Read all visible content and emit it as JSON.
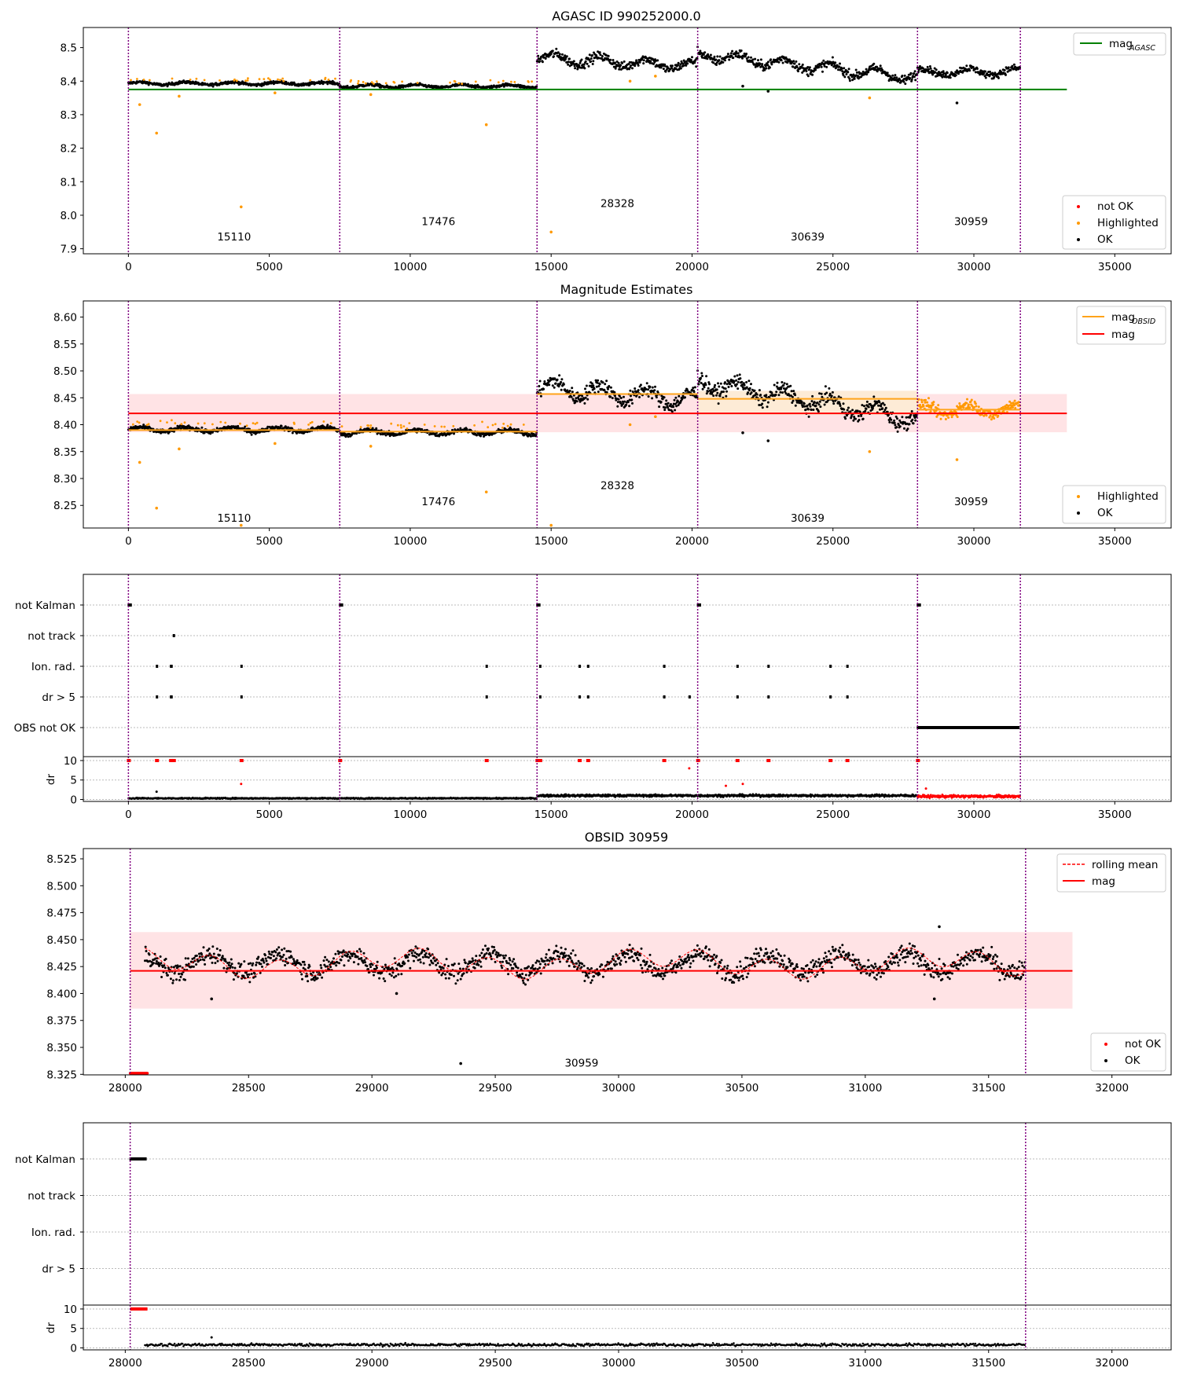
{
  "chart_data": [
    {
      "type": "scatter",
      "title": "AGASC ID 990252000.0",
      "ylim": [
        7.885,
        8.56
      ],
      "xlim": [
        -1600,
        37000
      ],
      "xticks": [
        0,
        5000,
        10000,
        15000,
        20000,
        25000,
        30000,
        35000
      ],
      "yticks": [
        7.9,
        8.0,
        8.1,
        8.2,
        8.3,
        8.4,
        8.5
      ],
      "obsid_boundaries": [
        0,
        7500,
        14500,
        20200,
        28000,
        31650
      ],
      "obsid_labels": [
        {
          "text": "15110",
          "x": 3750,
          "y": 7.925
        },
        {
          "text": "17476",
          "x": 11000,
          "y": 7.97
        },
        {
          "text": "28328",
          "x": 17350,
          "y": 8.025
        },
        {
          "text": "30639",
          "x": 24100,
          "y": 7.925
        },
        {
          "text": "30959",
          "x": 29900,
          "y": 7.97
        }
      ],
      "segments": [
        {
          "x0": 0,
          "x1": 7500,
          "level": 8.393,
          "spread": 0.012,
          "type": "ok"
        },
        {
          "x0": 7500,
          "x1": 14500,
          "level": 8.385,
          "spread": 0.012,
          "type": "ok"
        },
        {
          "x0": 14500,
          "x1": 20200,
          "level_start": 8.47,
          "level_end": 8.445,
          "spread": 0.04,
          "type": "ok"
        },
        {
          "x0": 20200,
          "x1": 28000,
          "level_start": 8.48,
          "level_end": 8.41,
          "spread": 0.04,
          "type": "ok"
        },
        {
          "x0": 28000,
          "x1": 31650,
          "level": 8.428,
          "spread": 0.03,
          "type": "ok"
        }
      ],
      "highlighted_outliers": [
        [
          400,
          8.33
        ],
        [
          1000,
          8.245
        ],
        [
          1800,
          8.355
        ],
        [
          4000,
          8.025
        ],
        [
          5200,
          8.365
        ],
        [
          8600,
          8.36
        ],
        [
          12700,
          8.27
        ],
        [
          15000,
          7.95
        ],
        [
          17800,
          8.4
        ],
        [
          18700,
          8.415
        ],
        [
          26300,
          8.35
        ]
      ],
      "ok_outliers": [
        [
          21800,
          8.385
        ],
        [
          22700,
          8.37
        ],
        [
          29400,
          8.335
        ]
      ],
      "hlines": [
        {
          "name": "mag_AGASC",
          "y": 8.375,
          "x0": 0,
          "x1": 33300,
          "color": "#008000"
        }
      ],
      "legends": [
        {
          "position": "top-right",
          "entries": [
            "mag_AGASC"
          ]
        },
        {
          "position": "bottom-right",
          "entries": [
            "not OK",
            "Highlighted",
            "OK"
          ]
        }
      ]
    },
    {
      "type": "scatter",
      "title": "Magnitude Estimates",
      "ylim": [
        8.208,
        8.63
      ],
      "xlim": [
        -1600,
        37000
      ],
      "xticks": [
        0,
        5000,
        10000,
        15000,
        20000,
        25000,
        30000,
        35000
      ],
      "yticks": [
        8.25,
        8.3,
        8.35,
        8.4,
        8.45,
        8.5,
        8.55,
        8.6
      ],
      "obsid_boundaries": [
        0,
        7500,
        14500,
        20200,
        28000,
        31650
      ],
      "obsid_labels": [
        {
          "text": "15110",
          "x": 3750,
          "y": 8.22
        },
        {
          "text": "17476",
          "x": 11000,
          "y": 8.25
        },
        {
          "text": "28328",
          "x": 17350,
          "y": 8.28
        },
        {
          "text": "30639",
          "x": 24100,
          "y": 8.22
        },
        {
          "text": "30959",
          "x": 29900,
          "y": 8.25
        }
      ],
      "segments": [
        {
          "x0": 0,
          "x1": 7500,
          "level": 8.391,
          "spread": 0.012,
          "type": "ok",
          "obsid_mag": 8.39
        },
        {
          "x0": 7500,
          "x1": 14500,
          "level": 8.386,
          "spread": 0.012,
          "type": "ok",
          "obsid_mag": 8.387
        },
        {
          "x0": 14500,
          "x1": 20200,
          "level_start": 8.47,
          "level_end": 8.445,
          "spread": 0.04,
          "type": "ok",
          "obsid_mag": 8.457
        },
        {
          "x0": 20200,
          "x1": 28000,
          "level_start": 8.48,
          "level_end": 8.41,
          "spread": 0.04,
          "type": "ok",
          "obsid_mag": 8.448
        },
        {
          "x0": 28000,
          "x1": 31650,
          "level": 8.428,
          "spread": 0.03,
          "type": "highlighted",
          "obsid_mag": 8.428
        }
      ],
      "highlighted_outliers": [
        [
          400,
          8.33
        ],
        [
          1000,
          8.245
        ],
        [
          1800,
          8.355
        ],
        [
          4000,
          8.213
        ],
        [
          5200,
          8.365
        ],
        [
          8600,
          8.36
        ],
        [
          12700,
          8.275
        ],
        [
          15000,
          8.213
        ],
        [
          17800,
          8.4
        ],
        [
          18700,
          8.415
        ],
        [
          26300,
          8.35
        ],
        [
          29400,
          8.335
        ]
      ],
      "ok_outliers": [
        [
          21800,
          8.385
        ],
        [
          22700,
          8.37
        ]
      ],
      "hlines": [
        {
          "name": "mag_OBSID",
          "color": "#ff9900"
        },
        {
          "name": "mag",
          "y": 8.421,
          "x0": 0,
          "x1": 33300,
          "color": "#ff0000",
          "band": [
            8.386,
            8.457
          ]
        }
      ],
      "legends": [
        {
          "position": "top-right",
          "entries": [
            "mag_OBSID",
            "mag"
          ]
        },
        {
          "position": "bottom-right",
          "entries": [
            "Highlighted",
            "OK"
          ]
        }
      ]
    },
    {
      "type": "scatter",
      "title": "",
      "xlim": [
        -1600,
        37000
      ],
      "xticks": [
        0,
        5000,
        10000,
        15000,
        20000,
        25000,
        30000,
        35000
      ],
      "flag_rows": [
        "not Kalman",
        "not track",
        "Ion. rad.",
        "dr > 5",
        "OBS not OK"
      ],
      "flag_points": {
        "not Kalman": [
          [
            0,
            150
          ],
          [
            7500,
            150
          ],
          [
            14500,
            150
          ],
          [
            20200,
            150
          ],
          [
            28000,
            150
          ]
        ],
        "not track": [
          [
            1600,
            0
          ]
        ],
        "Ion. rad.": [
          [
            1000,
            0
          ],
          [
            1500,
            100
          ],
          [
            4000,
            0
          ],
          [
            12700,
            0
          ],
          [
            14600,
            0
          ],
          [
            16000,
            0
          ],
          [
            16300,
            0
          ],
          [
            19000,
            0
          ],
          [
            21600,
            0
          ],
          [
            22700,
            0
          ],
          [
            24900,
            0
          ],
          [
            25500,
            0
          ]
        ],
        "dr > 5": [
          [
            1000,
            0
          ],
          [
            1500,
            100
          ],
          [
            4000,
            0
          ],
          [
            12700,
            0
          ],
          [
            14600,
            0
          ],
          [
            16000,
            0
          ],
          [
            16300,
            0
          ],
          [
            19000,
            0
          ],
          [
            19900,
            0
          ],
          [
            21600,
            0
          ],
          [
            22700,
            0
          ],
          [
            24900,
            0
          ],
          [
            25500,
            0
          ]
        ],
        "OBS not OK": [
          [
            28000,
            3650
          ]
        ]
      },
      "dr_ylabel": "dr",
      "dr_ylim": [
        -0.5,
        11
      ],
      "dr_yticks": [
        0,
        5,
        10
      ],
      "dr_segments": [
        {
          "x0": 0,
          "x1": 14500,
          "level": 0.3,
          "spread": 0.3,
          "color": "#000000"
        },
        {
          "x0": 14500,
          "x1": 28000,
          "level": 1.0,
          "spread": 0.6,
          "color": "#000000"
        },
        {
          "x0": 28000,
          "x1": 31650,
          "level": 0.8,
          "spread": 0.7,
          "color": "#ff0000"
        }
      ],
      "dr_outliers": [
        [
          1000,
          2,
          "#000000"
        ],
        [
          4000,
          4,
          "#ff0000"
        ],
        [
          19900,
          8,
          "#ff0000"
        ],
        [
          21200,
          3.5,
          "#ff0000"
        ],
        [
          21800,
          4,
          "#ff0000"
        ],
        [
          28300,
          2.8,
          "#ff0000"
        ]
      ],
      "dr_clipped": [
        0,
        1000,
        1500,
        1600,
        4000,
        7500,
        12700,
        14500,
        14600,
        16000,
        16300,
        19000,
        20200,
        21600,
        22700,
        24900,
        25500,
        28000
      ]
    },
    {
      "type": "scatter",
      "title": "OBSID 30959",
      "ylim": [
        8.3245,
        8.5345
      ],
      "xlim": [
        27830,
        32240
      ],
      "xticks": [
        28000,
        28500,
        29000,
        29500,
        30000,
        30500,
        31000,
        31500,
        32000
      ],
      "yticks": [
        8.325,
        8.35,
        8.375,
        8.4,
        8.425,
        8.45,
        8.475,
        8.5,
        8.525
      ],
      "obsid_boundaries": [
        28020,
        31650
      ],
      "obsid_labels": [
        {
          "text": "30959",
          "x": 29850,
          "y": 8.332
        }
      ],
      "segments": [
        {
          "x0": 28080,
          "x1": 31650,
          "level": 8.428,
          "spread": 0.025,
          "type": "ok"
        }
      ],
      "not_ok_range": [
        28020,
        28090
      ],
      "not_ok_level": 8.326,
      "ok_outliers": [
        [
          29360,
          8.335
        ],
        [
          29100,
          8.4
        ],
        [
          31280,
          8.395
        ],
        [
          31300,
          8.462
        ],
        [
          28350,
          8.395
        ]
      ],
      "hlines": [
        {
          "name": "mag",
          "y": 8.421,
          "x0": 28020,
          "x1": 31840,
          "color": "#ff0000",
          "band": [
            8.386,
            8.457
          ]
        }
      ],
      "rolling_mean": true,
      "legends": [
        {
          "position": "top-right",
          "entries": [
            "rolling mean",
            "mag"
          ]
        },
        {
          "position": "bottom-right",
          "entries": [
            "not OK",
            "OK"
          ]
        }
      ]
    },
    {
      "type": "scatter",
      "title": "",
      "xlim": [
        27830,
        32240
      ],
      "xticks": [
        28000,
        28500,
        29000,
        29500,
        30000,
        30500,
        31000,
        31500,
        32000
      ],
      "flag_rows": [
        "not Kalman",
        "not track",
        "Ion. rad.",
        "dr > 5"
      ],
      "flag_points": {
        "not Kalman": [
          [
            28020,
            70
          ]
        ],
        "not track": [],
        "Ion. rad.": [],
        "dr > 5": []
      },
      "dr_ylabel": "dr",
      "dr_ylim": [
        -0.5,
        11
      ],
      "dr_yticks": [
        0,
        5,
        10
      ],
      "dr_segments": [
        {
          "x0": 28080,
          "x1": 31650,
          "level": 0.8,
          "spread": 0.7,
          "color": "#000000"
        }
      ],
      "dr_outliers": [
        [
          28350,
          2.7,
          "#000000"
        ]
      ],
      "dr_clipped_range": [
        28020,
        28090
      ]
    }
  ],
  "legend_labels": {
    "mag_agasc": "mag",
    "mag_agasc_sub": "AGASC",
    "mag_obsid": "mag",
    "mag_obsid_sub": "OBSID",
    "mag": "mag",
    "not_ok": "not OK",
    "highlighted": "Highlighted",
    "ok": "OK",
    "rolling_mean": "rolling mean"
  },
  "colors": {
    "ok": "#000000",
    "highlighted": "#ff9900",
    "not_ok": "#ff0000",
    "agasc_line": "#008000",
    "obsid_line": "#ffa31a",
    "mag_line": "#ff0000",
    "band": "#ffe3e5",
    "obsid_band": "#fdebd6",
    "boundary": "#800080"
  }
}
